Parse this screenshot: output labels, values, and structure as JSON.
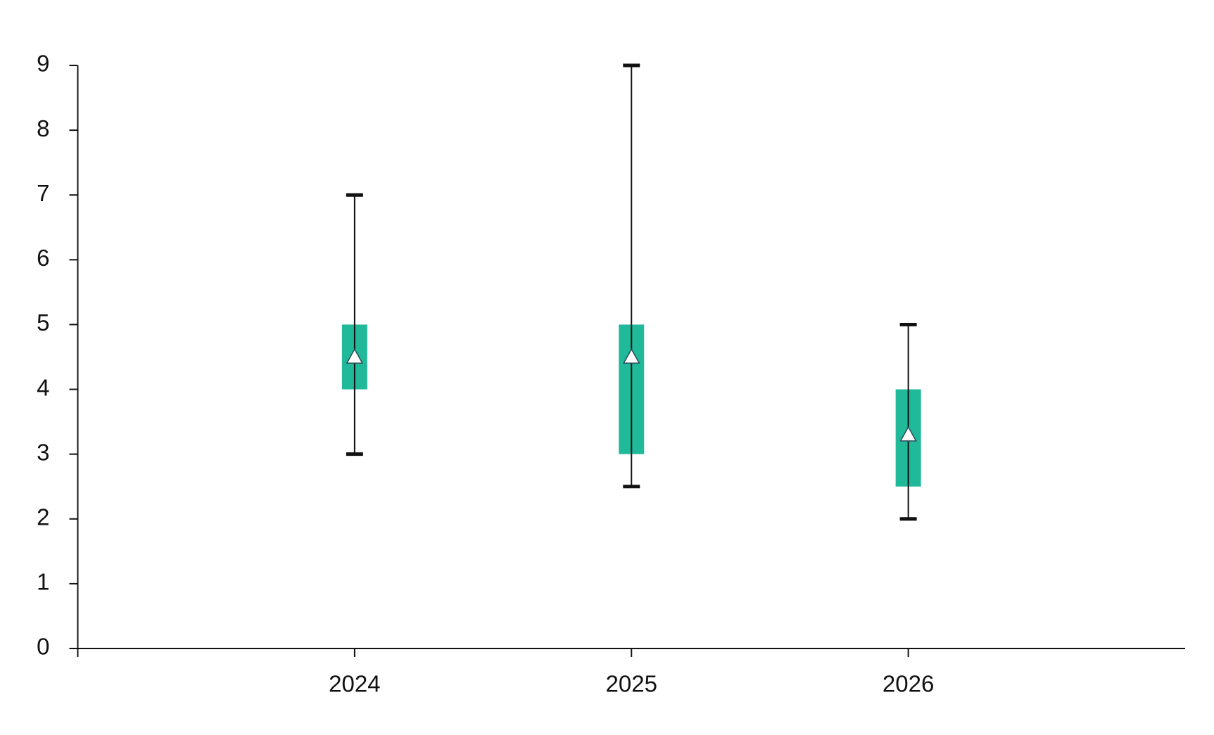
{
  "chart_data": {
    "type": "box",
    "categories": [
      "2024",
      "2025",
      "2026"
    ],
    "low": [
      3,
      2.5,
      2
    ],
    "q1": [
      4,
      3,
      2.5
    ],
    "q3": [
      5,
      5,
      4
    ],
    "high": [
      7,
      9,
      5
    ],
    "mean": [
      4.5,
      4.5,
      3.3
    ],
    "color": "#20b99a",
    "whisker_color": "#111111",
    "mean_color": "#ffffff",
    "ylim": [
      0,
      9
    ],
    "yticks": [
      0,
      1,
      2,
      3,
      4,
      5,
      6,
      7,
      8,
      9
    ],
    "grid": false
  }
}
